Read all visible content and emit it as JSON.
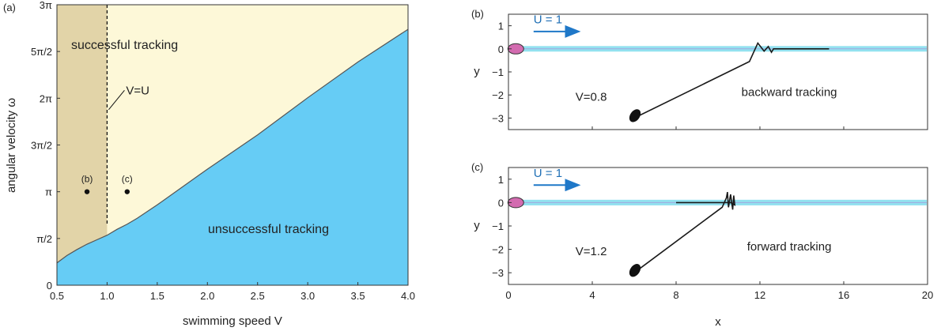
{
  "chart_data": [
    {
      "id": "a",
      "type": "area",
      "panel_label": "(a)",
      "xlabel": "swimming speed V",
      "ylabel": "angular velocity ω",
      "xlim": [
        0.5,
        4.0
      ],
      "ylim": [
        0,
        9.42478
      ],
      "xticks": [
        0.5,
        1.0,
        1.5,
        2.0,
        2.5,
        3.0,
        3.5,
        4.0
      ],
      "xtick_labels": [
        "0.5",
        "1.0",
        "1.5",
        "2.0",
        "2.5",
        "3.0",
        "3.5",
        "4.0"
      ],
      "yticks": [
        0,
        1.5708,
        3.1416,
        4.7124,
        6.2832,
        7.854,
        9.4248
      ],
      "ytick_labels": [
        "0",
        "π/2",
        "π",
        "3π/2",
        "2π",
        "5π/2",
        "3π"
      ],
      "boundary": {
        "x": [
          0.5,
          0.6,
          0.7,
          0.8,
          0.9,
          1.0,
          1.1,
          1.2,
          1.3,
          1.5,
          2.0,
          2.5,
          3.0,
          3.5,
          4.0
        ],
        "y": [
          0.75,
          1.0,
          1.2,
          1.38,
          1.53,
          1.68,
          1.88,
          2.05,
          2.25,
          2.7,
          3.9,
          5.05,
          6.3,
          7.5,
          8.6
        ]
      },
      "regions": {
        "above": "successful tracking",
        "below": "unsuccessful tracking"
      },
      "shaded_x_range": [
        0.5,
        1.0
      ],
      "vline": {
        "x": 1.0,
        "label": "V=U"
      },
      "points": [
        {
          "x": 0.8,
          "y": 3.1416,
          "label": "(b)"
        },
        {
          "x": 1.2,
          "y": 3.1416,
          "label": "(c)"
        }
      ],
      "colors": {
        "unsuccessful": "#66ccf5",
        "successful": "#fdf8d8",
        "shaded": "#e2d4a8",
        "boundary": "#555555"
      }
    },
    {
      "id": "b",
      "type": "line",
      "panel_label": "(b)",
      "xlabel": "",
      "ylabel": "y",
      "xlim": [
        0,
        20
      ],
      "ylim": [
        -3.5,
        1.5
      ],
      "xticks": [
        0,
        4,
        8,
        12,
        16,
        20
      ],
      "yticks": [
        1,
        0,
        -1,
        -2,
        -3
      ],
      "ytick_labels": [
        "1",
        "0",
        "−1",
        "−2",
        "−3"
      ],
      "flow_label": "U = 1",
      "speed_label": "V=0.8",
      "mode_label": "backward tracking",
      "trajectory": {
        "x": [
          6.0,
          11.5,
          11.9,
          12.2,
          12.4,
          12.55,
          12.65,
          15.3
        ],
        "y": [
          -3.0,
          -0.55,
          0.25,
          -0.1,
          0.1,
          -0.15,
          0.0,
          0.0
        ]
      },
      "colors": {
        "trail": "#7fdcec",
        "trajectory": "#1a1a1a",
        "source": "#d36bb0",
        "flow": "#1f78c8"
      }
    },
    {
      "id": "c",
      "type": "line",
      "panel_label": "(c)",
      "xlabel": "x",
      "ylabel": "y",
      "xlim": [
        0,
        20
      ],
      "ylim": [
        -3.5,
        1.5
      ],
      "xticks": [
        0,
        4,
        8,
        12,
        16,
        20
      ],
      "yticks": [
        1,
        0,
        -1,
        -2,
        -3
      ],
      "ytick_labels": [
        "1",
        "0",
        "−1",
        "−2",
        "−3"
      ],
      "flow_label": "U = 1",
      "speed_label": "V=1.2",
      "mode_label": "forward tracking",
      "trajectory": {
        "x": [
          6.0,
          10.2,
          10.4,
          10.45,
          10.5,
          10.6,
          10.7,
          10.75,
          10.8,
          10.6,
          8.0
        ],
        "y": [
          -3.0,
          -0.2,
          0.2,
          0.45,
          -0.2,
          0.35,
          -0.3,
          0.3,
          -0.1,
          0.0,
          0.0
        ]
      },
      "colors": {
        "trail": "#7fdcec",
        "trajectory": "#1a1a1a",
        "source": "#d36bb0",
        "flow": "#1f78c8"
      }
    }
  ]
}
